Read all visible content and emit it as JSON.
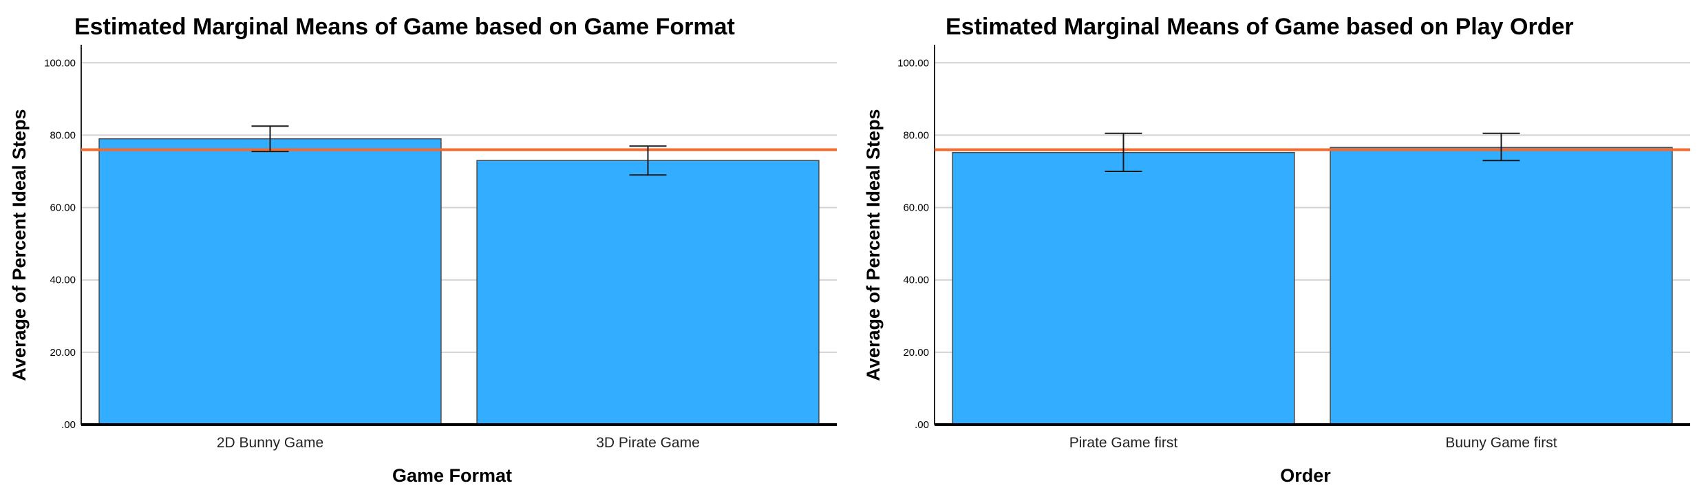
{
  "chart_data": [
    {
      "type": "bar",
      "title": "Estimated Marginal Means of Game based on Game Format",
      "xlabel": "Game Format",
      "ylabel": "Average of Percent Ideal Steps",
      "categories": [
        "2D Bunny Game",
        "3D Pirate Game"
      ],
      "values": [
        79.0,
        73.0
      ],
      "error_bars": [
        {
          "low": 75.5,
          "high": 82.5
        },
        {
          "low": 69.0,
          "high": 77.0
        }
      ],
      "reference_line": 76.0,
      "ylim": [
        0,
        105
      ],
      "yticks": [
        0,
        20,
        40,
        60,
        80,
        100
      ],
      "ytick_labels": [
        ".00",
        "20.00",
        "40.00",
        "60.00",
        "80.00",
        "100.00"
      ],
      "grid": true,
      "bar_color": "#33adff",
      "reference_line_color": "#f26a30"
    },
    {
      "type": "bar",
      "title": "Estimated Marginal Means of Game based on Play Order",
      "xlabel": "Order",
      "ylabel": "Average of Percent Ideal Steps",
      "categories": [
        "Pirate Game first",
        "Buuny Game first"
      ],
      "values": [
        75.2,
        76.6
      ],
      "error_bars": [
        {
          "low": 70.0,
          "high": 80.5
        },
        {
          "low": 73.0,
          "high": 80.5
        }
      ],
      "reference_line": 76.0,
      "ylim": [
        0,
        105
      ],
      "yticks": [
        0,
        20,
        40,
        60,
        80,
        100
      ],
      "ytick_labels": [
        ".00",
        "20.00",
        "40.00",
        "60.00",
        "80.00",
        "100.00"
      ],
      "grid": true,
      "bar_color": "#33adff",
      "reference_line_color": "#f26a30"
    }
  ]
}
